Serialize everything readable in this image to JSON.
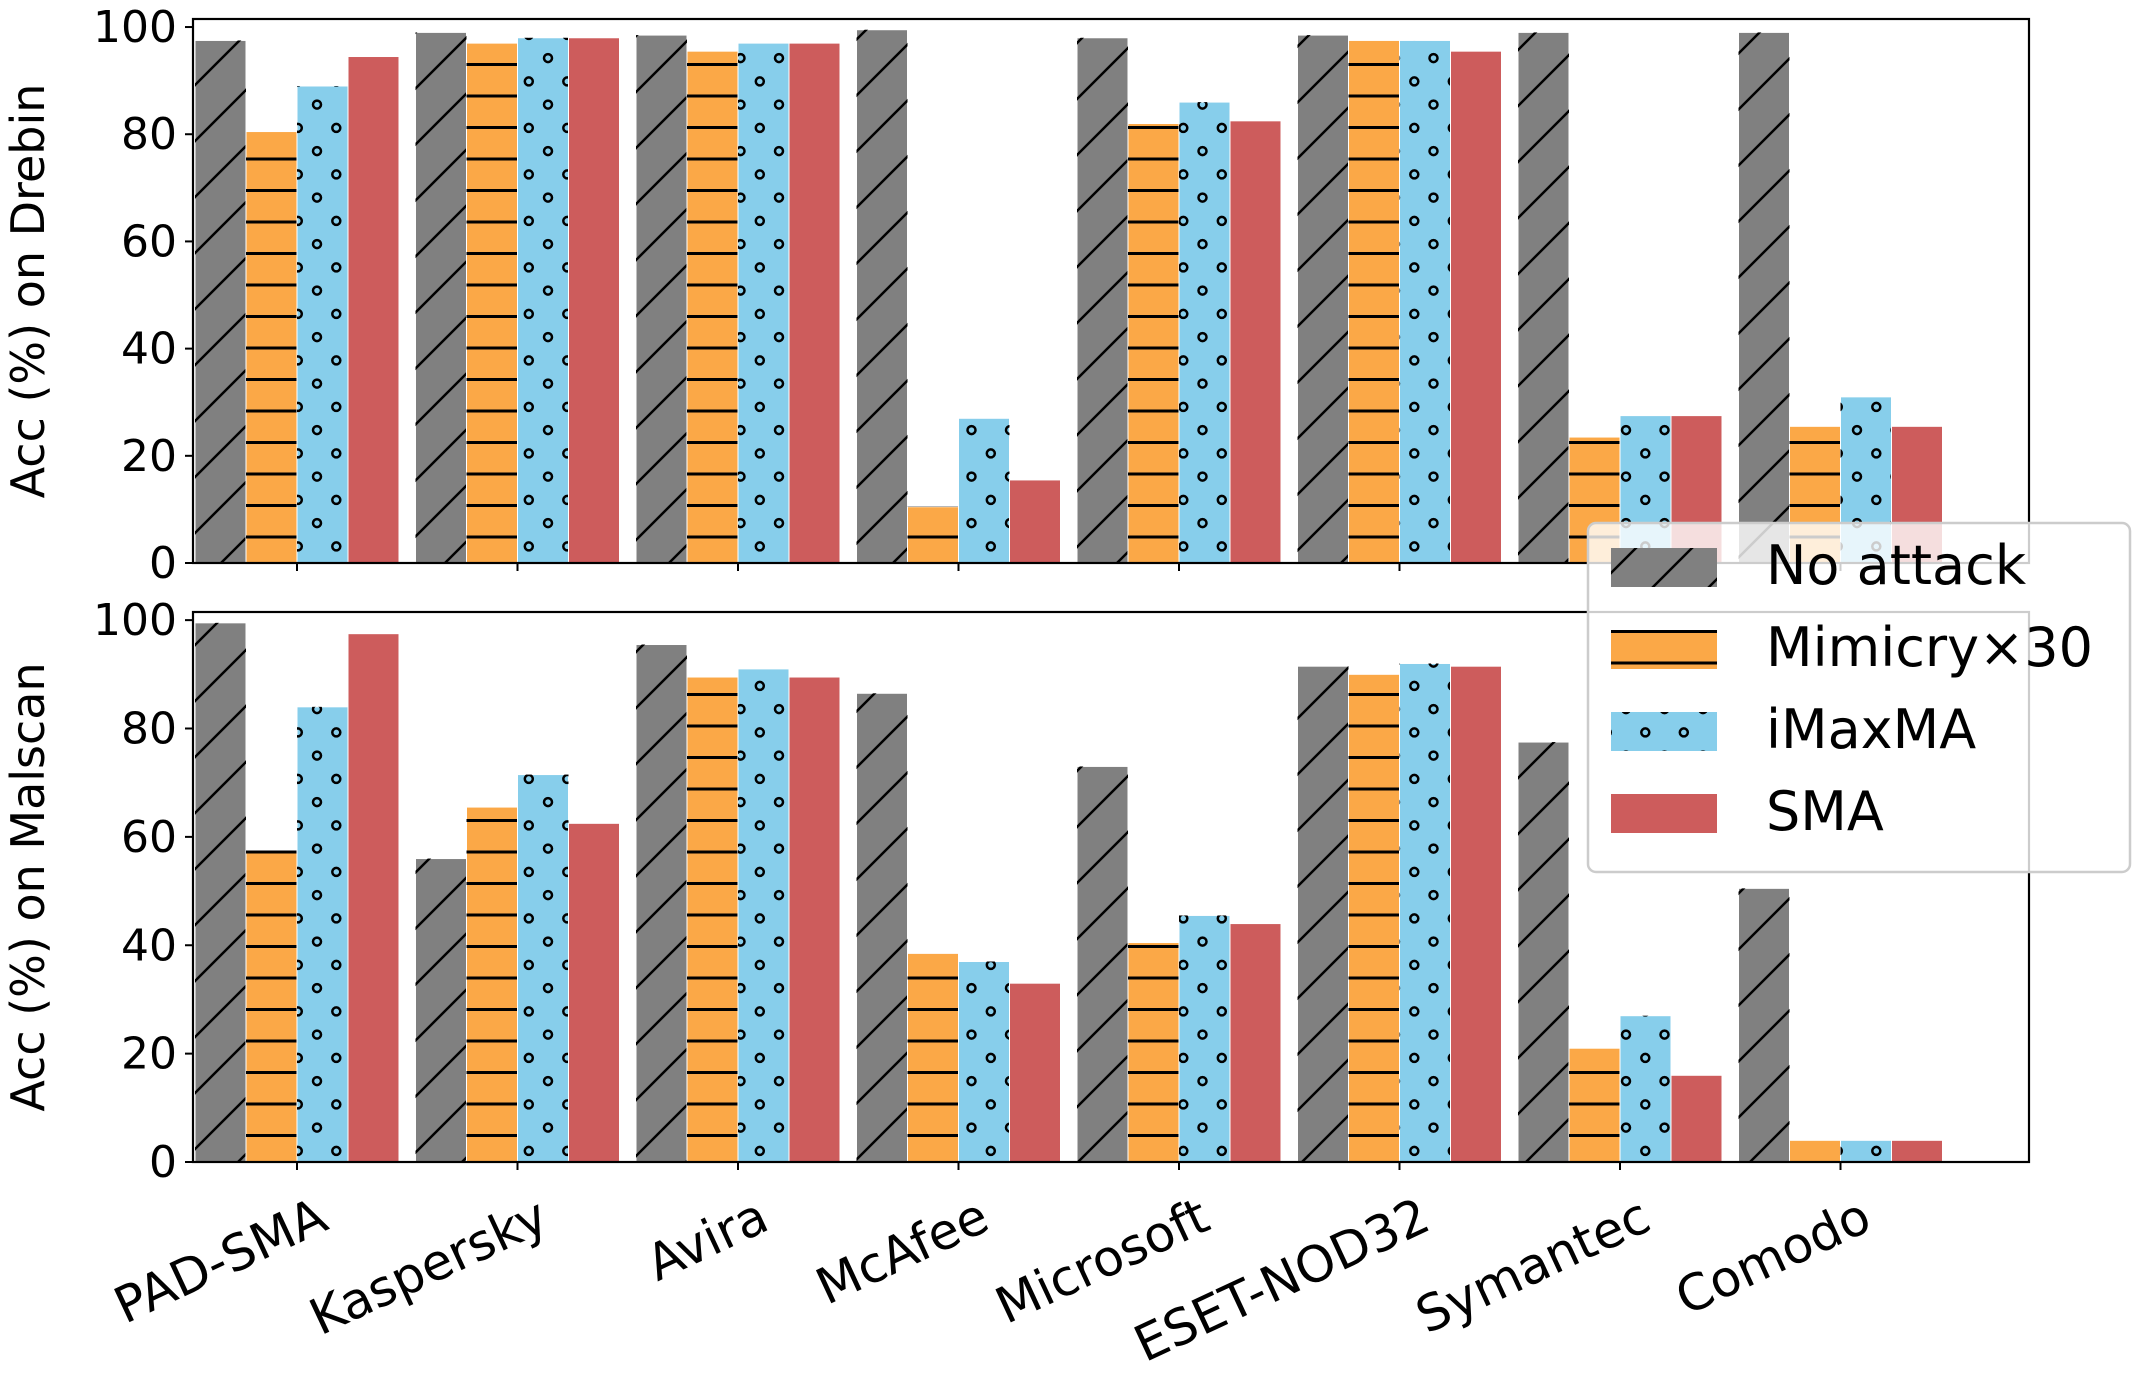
{
  "chart_data": [
    {
      "type": "bar",
      "ylabel": "Acc (%) on Drebin",
      "ylim": [
        0,
        101.5
      ],
      "yticks": [
        0,
        20,
        40,
        60,
        80,
        100
      ],
      "categories": [
        "PAD-SMA",
        "Kaspersky",
        "Avira",
        "McAfee",
        "Microsoft",
        "ESET-NOD32",
        "Symantec",
        "Comodo"
      ],
      "series": [
        {
          "name": "No attack",
          "color": "#808080",
          "hatch": "diagonal",
          "values": [
            97.5,
            99,
            98.5,
            99.5,
            98,
            98.5,
            99,
            99
          ]
        },
        {
          "name": "Mimicry×30",
          "color": "#FBA847",
          "hatch": "horizontal",
          "values": [
            80.5,
            97,
            95.5,
            10.5,
            82,
            97.5,
            23.5,
            25.5
          ]
        },
        {
          "name": "iMaxMA",
          "color": "#87CEEB",
          "hatch": "circles",
          "values": [
            89,
            98,
            97,
            27,
            86,
            97.5,
            27.5,
            31
          ]
        },
        {
          "name": "SMA",
          "color": "#CD5C5C",
          "hatch": "none",
          "values": [
            94.5,
            98,
            97,
            15.5,
            82.5,
            95.5,
            27.5,
            25.5
          ]
        }
      ],
      "grid": false
    },
    {
      "type": "bar",
      "ylabel": "Acc (%) on Malscan",
      "ylim": [
        0,
        101.5
      ],
      "yticks": [
        0,
        20,
        40,
        60,
        80,
        100
      ],
      "categories": [
        "PAD-SMA",
        "Kaspersky",
        "Avira",
        "McAfee",
        "Microsoft",
        "ESET-NOD32",
        "Symantec",
        "Comodo"
      ],
      "series": [
        {
          "name": "No attack",
          "color": "#808080",
          "hatch": "diagonal",
          "values": [
            99.5,
            56,
            95.5,
            86.5,
            73,
            91.5,
            77.5,
            50.5
          ]
        },
        {
          "name": "Mimicry×30",
          "color": "#FBA847",
          "hatch": "horizontal",
          "values": [
            57.5,
            65.5,
            89.5,
            38.5,
            40.5,
            90,
            21,
            4
          ]
        },
        {
          "name": "iMaxMA",
          "color": "#87CEEB",
          "hatch": "circles",
          "values": [
            84,
            71.5,
            91,
            37,
            45.5,
            92,
            27,
            4
          ]
        },
        {
          "name": "SMA",
          "color": "#CD5C5C",
          "hatch": "none",
          "values": [
            97.5,
            62.5,
            89.5,
            33,
            44,
            91.5,
            16,
            4
          ]
        }
      ],
      "grid": false
    }
  ],
  "legend": {
    "placement": "right, between panels",
    "items": [
      "No attack",
      "Mimicry×30",
      "iMaxMA",
      "SMA"
    ]
  }
}
